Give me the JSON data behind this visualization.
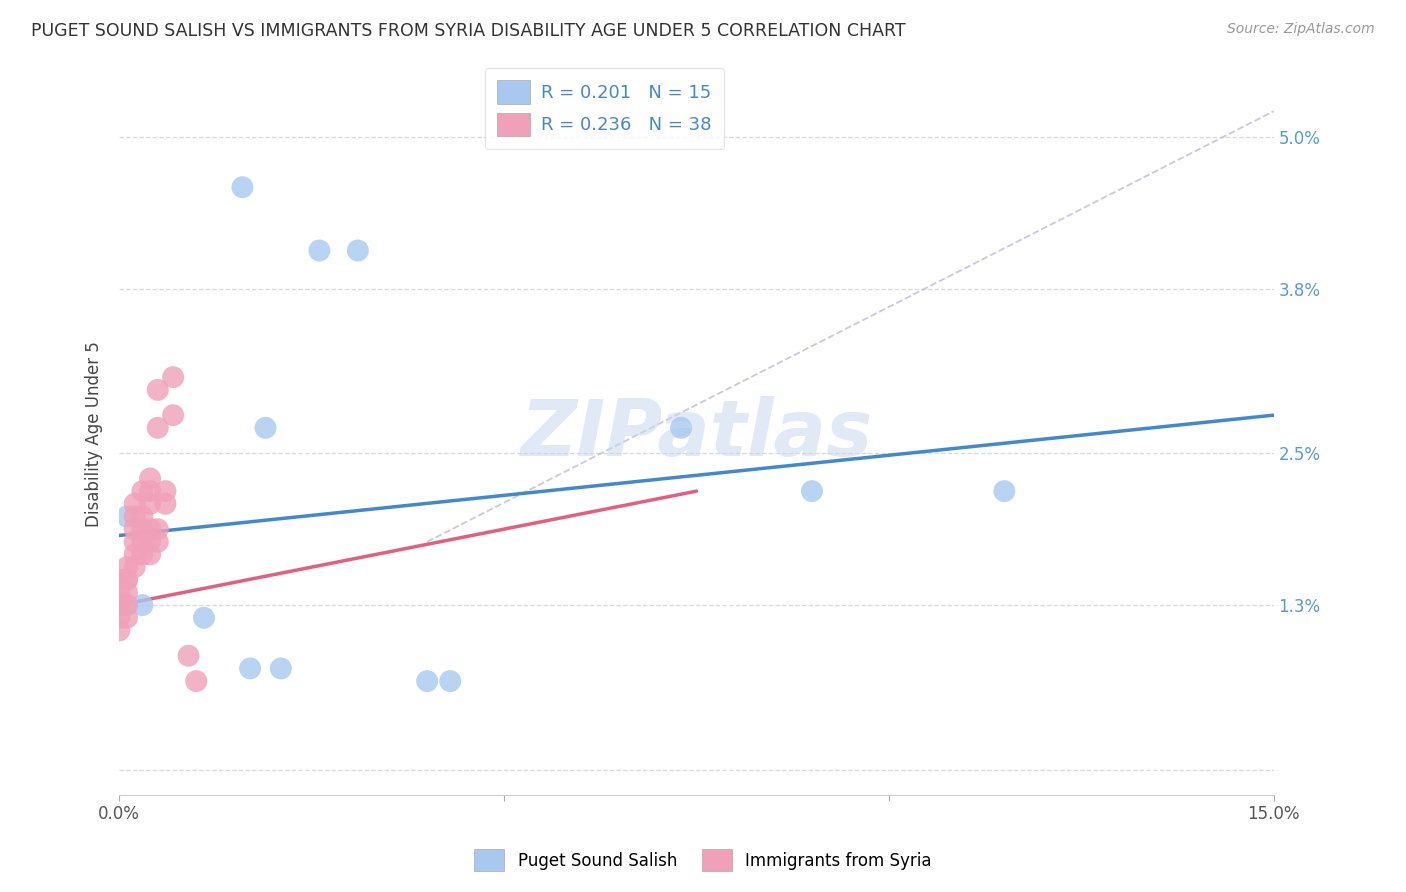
{
  "title": "PUGET SOUND SALISH VS IMMIGRANTS FROM SYRIA DISABILITY AGE UNDER 5 CORRELATION CHART",
  "source": "Source: ZipAtlas.com",
  "ylabel": "Disability Age Under 5",
  "xlim": [
    0.0,
    0.15
  ],
  "ylim": [
    -0.002,
    0.055
  ],
  "background_color": "#ffffff",
  "grid_color": "#d8d8d8",
  "blue_color": "#a8c8f0",
  "pink_color": "#f0a0b8",
  "blue_line_color": "#4488cc",
  "pink_line_color": "#e06080",
  "dashed_line_color": "#c0c0d8",
  "watermark": "ZIPatlas",
  "blue_points": [
    [
      0.016,
      0.046
    ],
    [
      0.026,
      0.041
    ],
    [
      0.031,
      0.041
    ],
    [
      0.019,
      0.027
    ],
    [
      0.073,
      0.027
    ],
    [
      0.09,
      0.022
    ],
    [
      0.115,
      0.022
    ],
    [
      0.001,
      0.02
    ],
    [
      0.001,
      0.013
    ],
    [
      0.003,
      0.013
    ],
    [
      0.011,
      0.012
    ],
    [
      0.017,
      0.008
    ],
    [
      0.021,
      0.008
    ],
    [
      0.04,
      0.007
    ],
    [
      0.043,
      0.007
    ]
  ],
  "pink_points": [
    [
      0.0,
      0.015
    ],
    [
      0.0,
      0.014
    ],
    [
      0.0,
      0.013
    ],
    [
      0.0,
      0.012
    ],
    [
      0.0,
      0.011
    ],
    [
      0.001,
      0.016
    ],
    [
      0.001,
      0.015
    ],
    [
      0.001,
      0.015
    ],
    [
      0.001,
      0.014
    ],
    [
      0.001,
      0.013
    ],
    [
      0.001,
      0.012
    ],
    [
      0.002,
      0.021
    ],
    [
      0.002,
      0.02
    ],
    [
      0.002,
      0.019
    ],
    [
      0.002,
      0.018
    ],
    [
      0.002,
      0.017
    ],
    [
      0.002,
      0.016
    ],
    [
      0.003,
      0.022
    ],
    [
      0.003,
      0.02
    ],
    [
      0.003,
      0.019
    ],
    [
      0.003,
      0.018
    ],
    [
      0.003,
      0.017
    ],
    [
      0.004,
      0.023
    ],
    [
      0.004,
      0.022
    ],
    [
      0.004,
      0.021
    ],
    [
      0.004,
      0.019
    ],
    [
      0.004,
      0.018
    ],
    [
      0.004,
      0.017
    ],
    [
      0.005,
      0.03
    ],
    [
      0.005,
      0.027
    ],
    [
      0.005,
      0.019
    ],
    [
      0.005,
      0.018
    ],
    [
      0.006,
      0.022
    ],
    [
      0.006,
      0.021
    ],
    [
      0.007,
      0.031
    ],
    [
      0.007,
      0.028
    ],
    [
      0.009,
      0.009
    ],
    [
      0.01,
      0.007
    ]
  ],
  "blue_line_x": [
    0.0,
    0.15
  ],
  "blue_line_y": [
    0.0185,
    0.028
  ],
  "pink_line_x": [
    0.0,
    0.075
  ],
  "pink_line_y": [
    0.013,
    0.022
  ],
  "dashed_line_x": [
    0.04,
    0.15
  ],
  "dashed_line_y": [
    0.018,
    0.052
  ],
  "ytick_positions": [
    0.0,
    0.013,
    0.025,
    0.038,
    0.05
  ],
  "ytick_labels_right": [
    "",
    "1.3%",
    "2.5%",
    "3.8%",
    "5.0%"
  ],
  "xtick_positions": [
    0.0,
    0.05,
    0.1,
    0.15
  ],
  "xtick_labels": [
    "0.0%",
    "",
    "",
    "15.0%"
  ]
}
